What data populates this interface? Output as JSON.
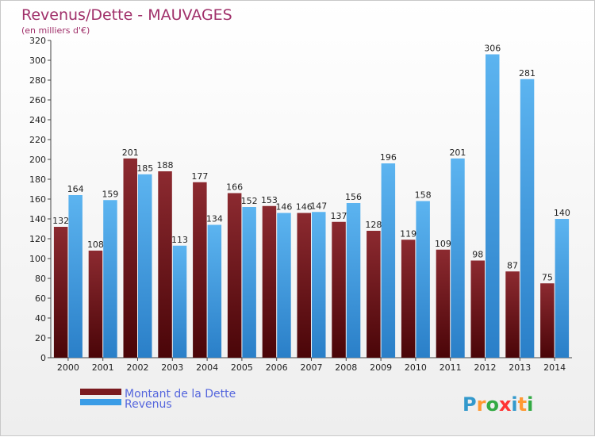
{
  "chart_data": {
    "type": "bar",
    "title": "Revenus/Dette - MAUVAGES",
    "subtitle": "(en milliers d'€)",
    "categories": [
      "2000",
      "2001",
      "2002",
      "2003",
      "2004",
      "2005",
      "2006",
      "2007",
      "2008",
      "2009",
      "2010",
      "2011",
      "2012",
      "2013",
      "2014"
    ],
    "series": [
      {
        "name": "Montant de la Dette",
        "values": [
          132,
          108,
          201,
          188,
          177,
          166,
          153,
          146,
          137,
          128,
          119,
          109,
          98,
          87,
          75
        ],
        "color": "#7a1a1f"
      },
      {
        "name": "Revenus",
        "values": [
          164,
          159,
          185,
          113,
          134,
          152,
          146,
          147,
          156,
          196,
          158,
          201,
          306,
          281,
          140
        ],
        "color": "#3a9ce6"
      }
    ],
    "ylim": [
      0,
      320
    ],
    "yticks": [
      0,
      20,
      40,
      60,
      80,
      100,
      120,
      140,
      160,
      180,
      200,
      220,
      240,
      260,
      280,
      300,
      320
    ],
    "grid": false,
    "legend": "bottom-left"
  },
  "logo": {
    "letters": [
      "P",
      "r",
      "o",
      "x",
      "i",
      "t",
      "i"
    ],
    "colors": [
      "#3399cc",
      "#ff9933",
      "#33aa44",
      "#ff3333",
      "#3399cc",
      "#ff9933",
      "#33aa44"
    ]
  }
}
